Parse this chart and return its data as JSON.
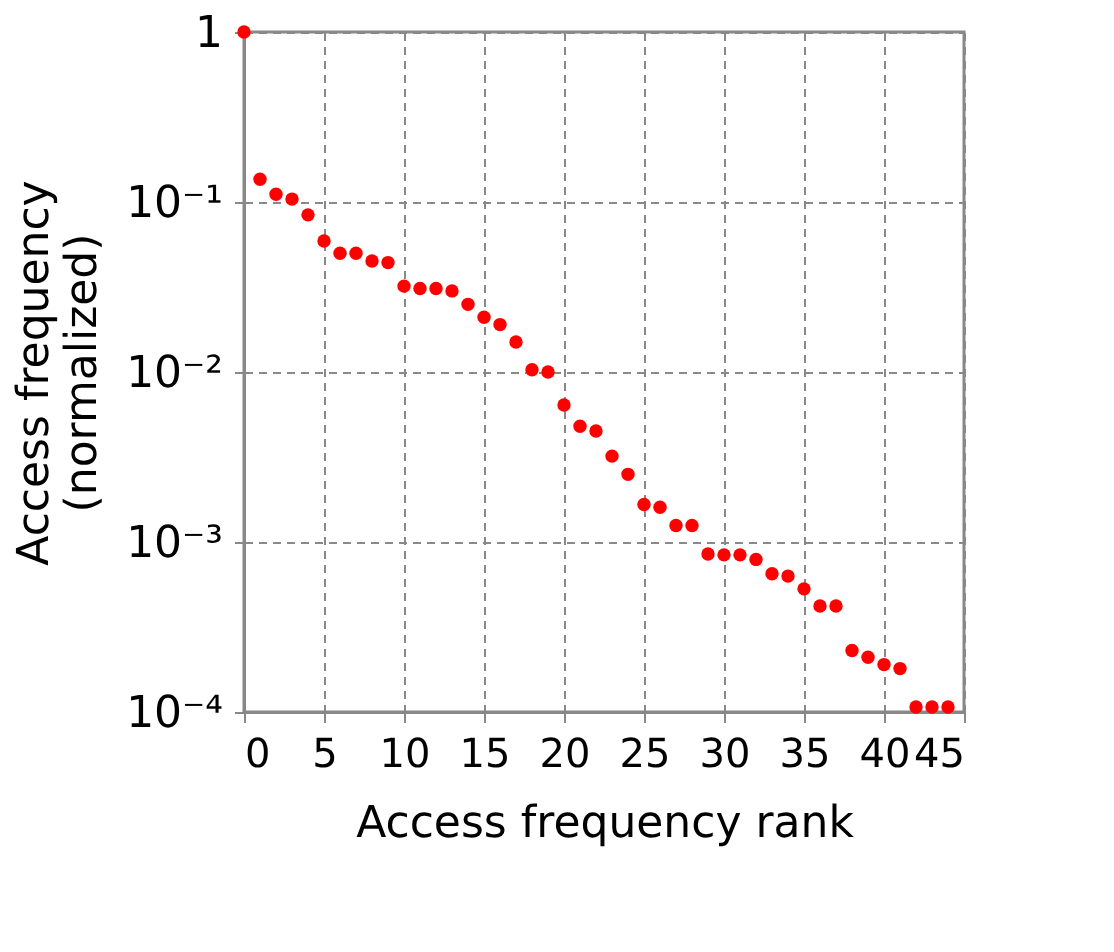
{
  "chart_data": {
    "type": "scatter",
    "xlabel": "Access frequency rank",
    "ylabel": "Access frequency\n(normalized)",
    "x": [
      0,
      1,
      2,
      3,
      4,
      5,
      6,
      7,
      8,
      9,
      10,
      11,
      12,
      13,
      14,
      15,
      16,
      17,
      18,
      19,
      20,
      21,
      22,
      23,
      24,
      25,
      26,
      27,
      28,
      29,
      30,
      31,
      32,
      33,
      34,
      35,
      36,
      37,
      38,
      39,
      40,
      41,
      42,
      43,
      44
    ],
    "series": [
      {
        "color": "#ff0000",
        "values": [
          1,
          0.136,
          0.111,
          0.104,
          0.084,
          0.059,
          0.05,
          0.05,
          0.045,
          0.044,
          0.032,
          0.031,
          0.031,
          0.03,
          0.025,
          0.021,
          0.019,
          0.015,
          0.0103,
          0.01,
          0.0064,
          0.0048,
          0.0045,
          0.0032,
          0.0025,
          0.00166,
          0.0016,
          0.00125,
          0.00125,
          0.00085,
          0.00084,
          0.00084,
          0.00079,
          0.00065,
          0.00063,
          0.00053,
          0.00042,
          0.00042,
          0.00023,
          0.00021,
          0.00019,
          0.00018,
          0.000107,
          0.000107,
          0.000107
        ]
      }
    ],
    "xlim": [
      0,
      45
    ],
    "xticks": [
      0,
      5,
      10,
      15,
      20,
      25,
      30,
      35,
      40,
      45
    ],
    "ylim": [
      0.0001,
      1
    ],
    "yticks": [
      {
        "value": 1,
        "label": "1"
      },
      {
        "value": 0.1,
        "label": "10⁻¹"
      },
      {
        "value": 0.01,
        "label": "10⁻²"
      },
      {
        "value": 0.001,
        "label": "10⁻³"
      },
      {
        "value": 0.0001,
        "label": "10⁻⁴"
      }
    ],
    "log": "y",
    "grid": true,
    "marker": "circle"
  }
}
